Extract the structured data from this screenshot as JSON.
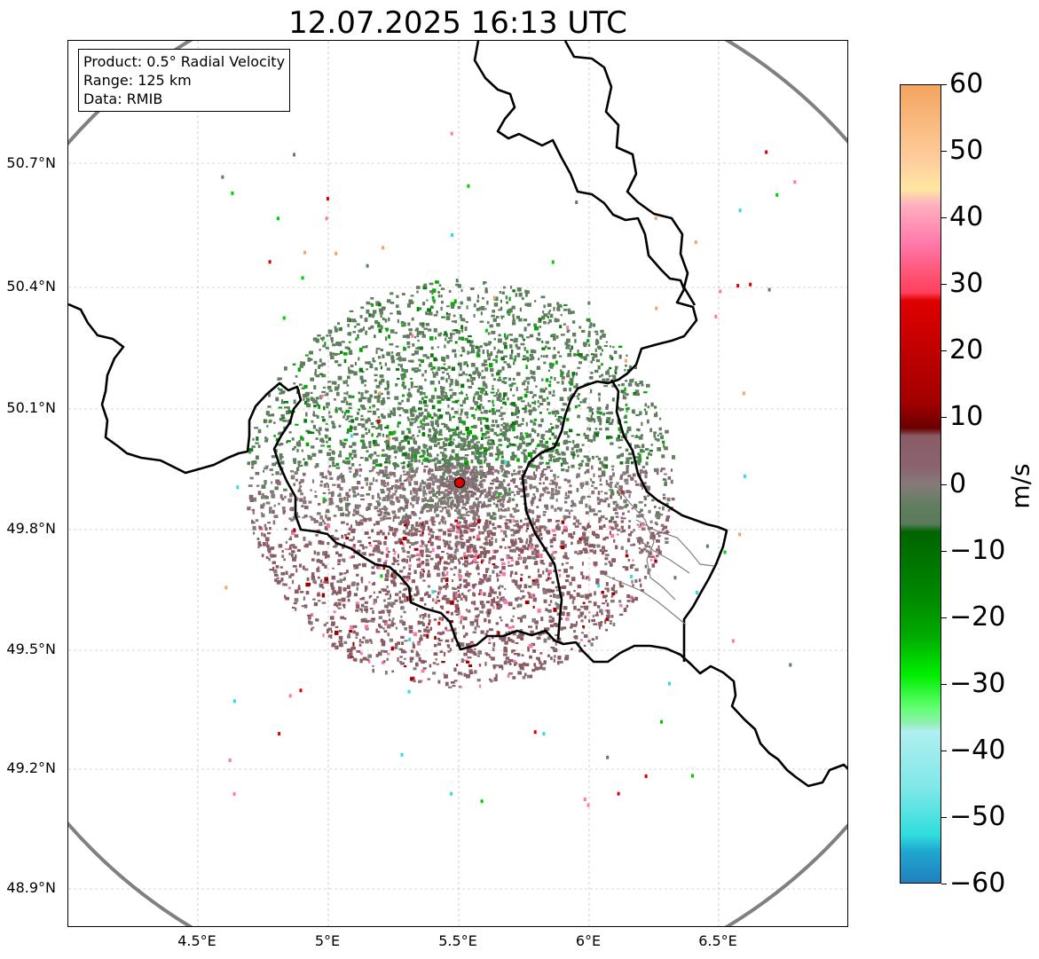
{
  "title": "12.07.2025 16:13 UTC",
  "info_box": {
    "product": "Product: 0.5° Radial Velocity",
    "range": "Range: 125 km",
    "source": "Data: RMIB"
  },
  "map": {
    "lon_range": [
      4.0,
      7.0
    ],
    "lat_range": [
      48.8,
      51.0
    ],
    "x_ticks": [
      "4.5°E",
      "5°E",
      "5.5°E",
      "6°E",
      "6.5°E"
    ],
    "y_ticks": [
      "50.7°N",
      "50.4°N",
      "50.1°N",
      "49.8°N",
      "49.5°N",
      "49.2°N",
      "48.9°N"
    ],
    "radar_site": {
      "lon": 5.5,
      "lat": 49.92
    },
    "range_ring_km": 125,
    "grid": true
  },
  "colorbar": {
    "label": "m/s",
    "ticks": [
      "60",
      "50",
      "40",
      "30",
      "20",
      "10",
      "0",
      "−10",
      "−20",
      "−30",
      "−40",
      "−50",
      "−60"
    ],
    "min": -60,
    "max": 60
  },
  "colors": {
    "receding_strong": "#f4a460",
    "receding_pink": "#ff77aa",
    "receding_red": "#e00000",
    "near_zero_brown": "#8a5c64",
    "near_zero_grey": "#877a7a",
    "near_zero_green": "#5e7e5e",
    "approaching_green": "#00aa00",
    "approaching_cyan": "#30dddd",
    "approaching_blue": "#2080c0",
    "border": "#000000",
    "ring": "#808080"
  }
}
